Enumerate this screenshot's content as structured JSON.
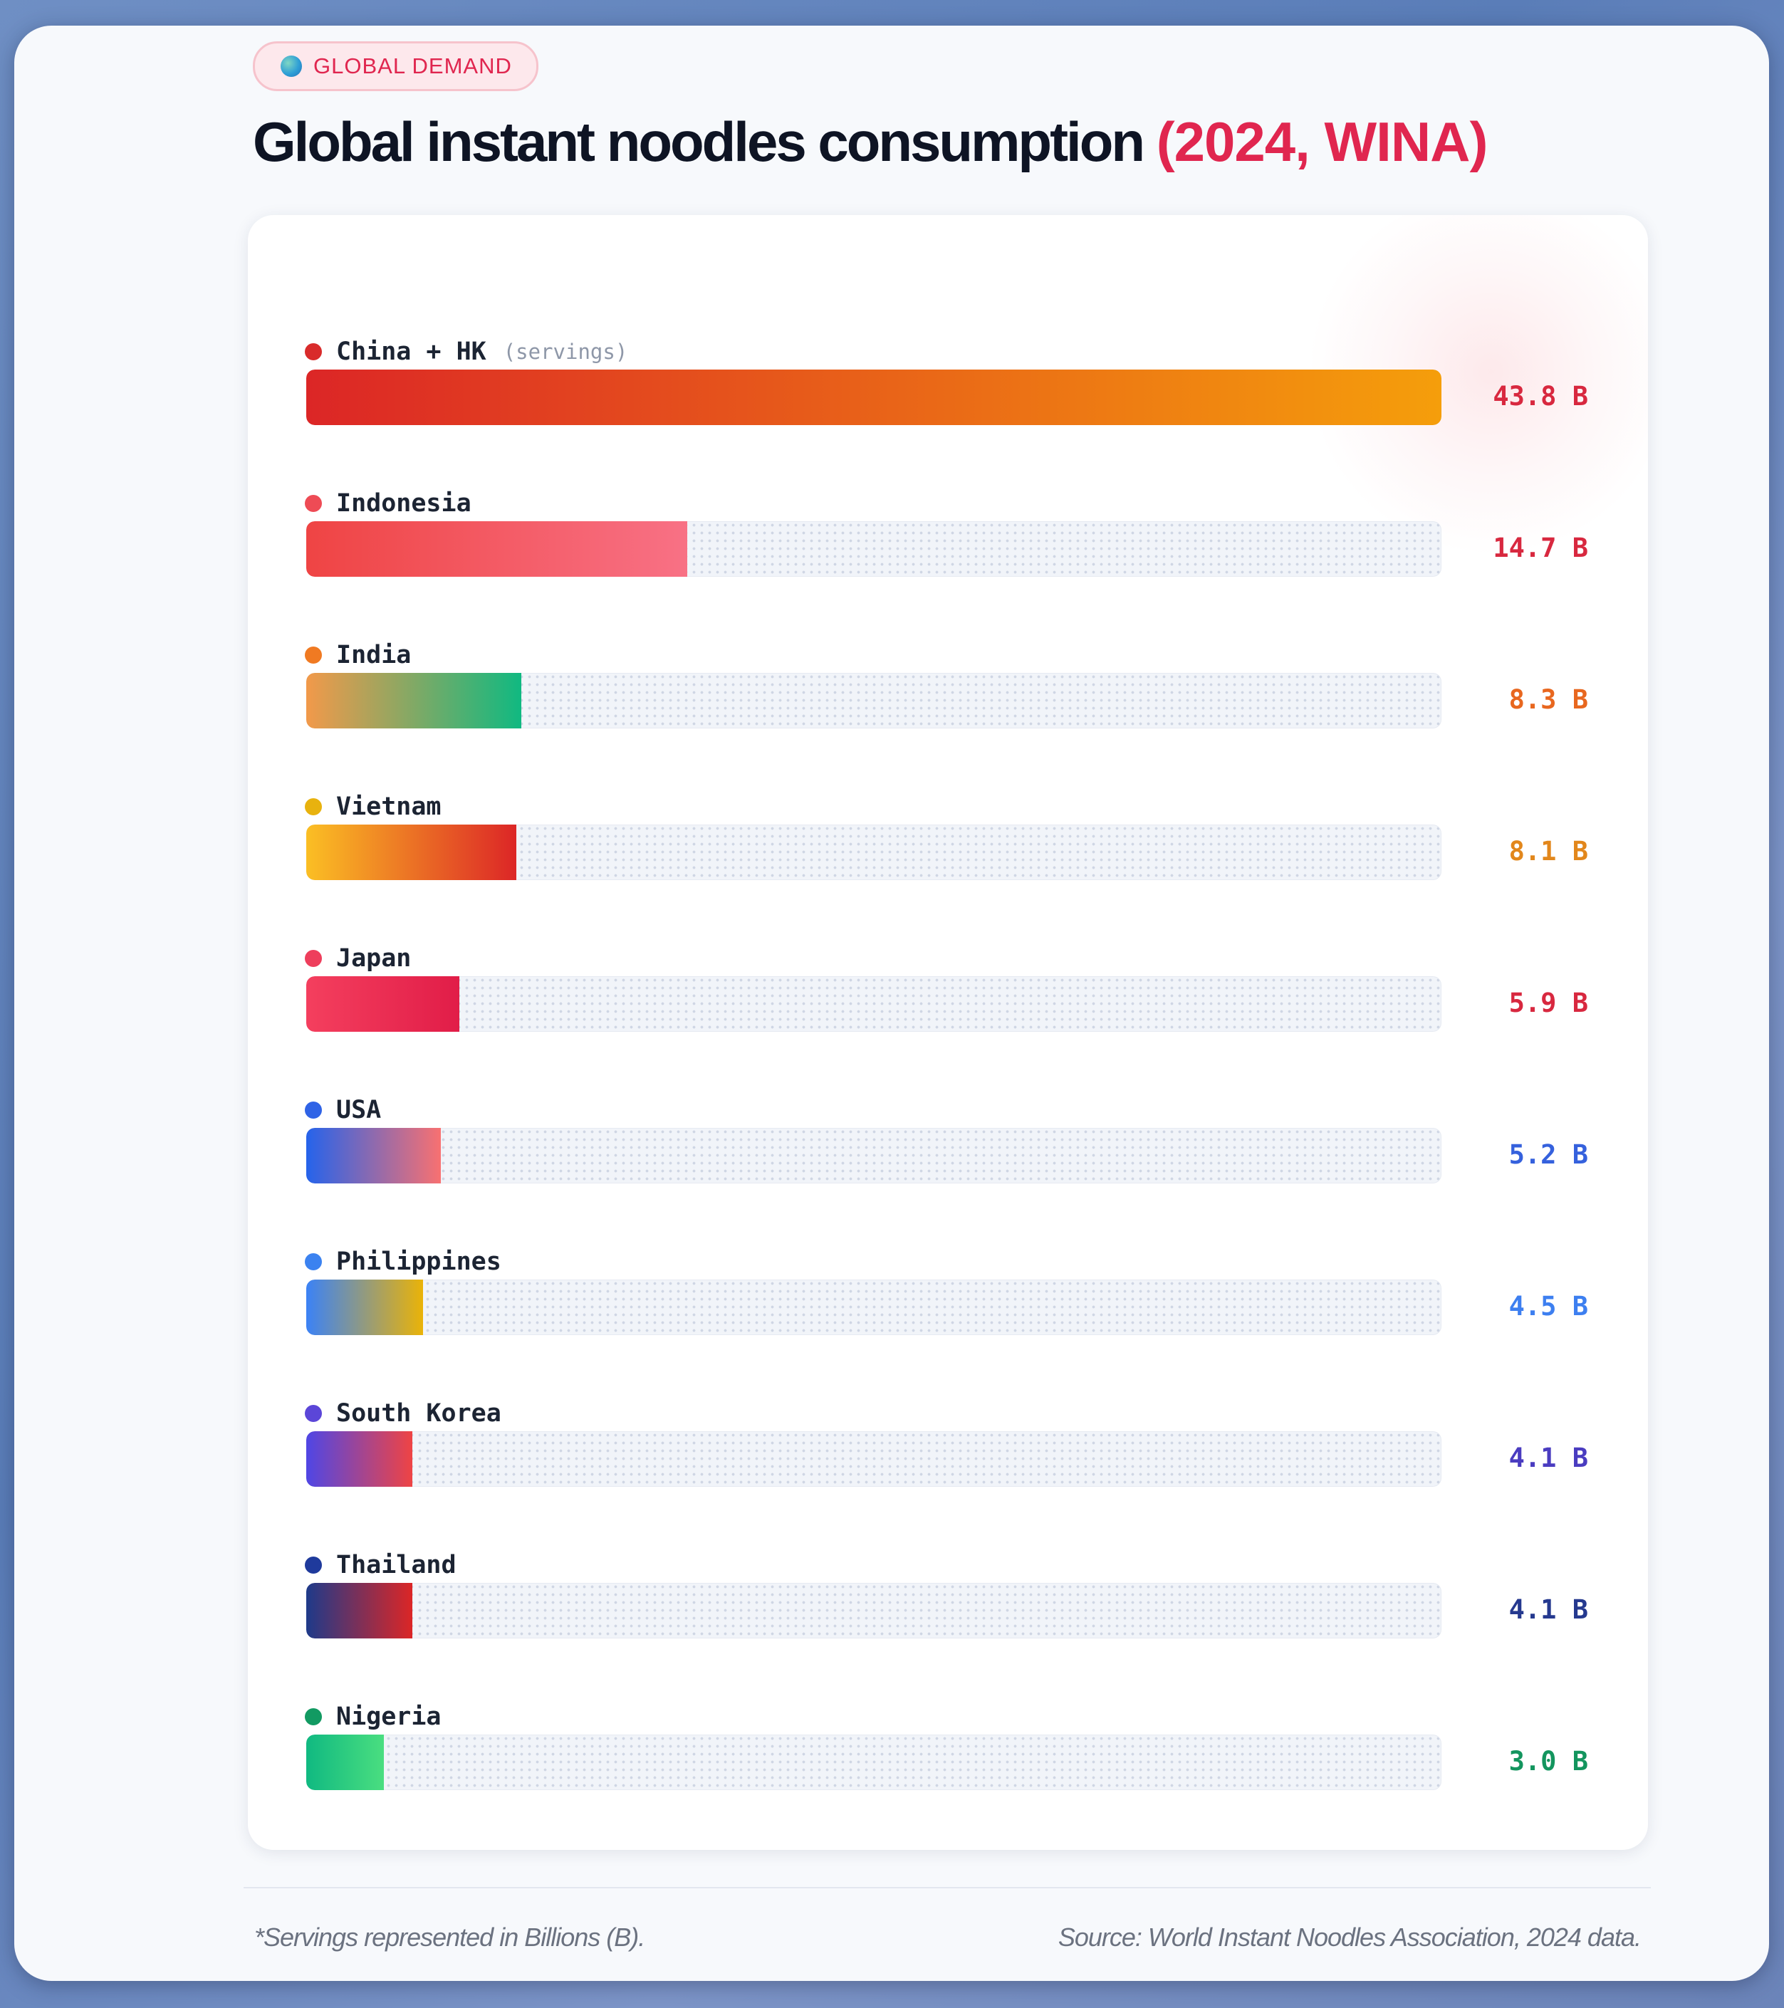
{
  "badge": {
    "label": "GLOBAL DEMAND",
    "icon": "globe-icon"
  },
  "title": {
    "main": "Global instant noodles consumption",
    "highlight": "(2024, WINA)"
  },
  "chart_data": {
    "type": "bar",
    "orientation": "horizontal",
    "xlim": [
      0,
      43.8
    ],
    "unit": "B",
    "categories": [
      "China + HK",
      "Indonesia",
      "India",
      "Vietnam",
      "Japan",
      "USA",
      "Philippines",
      "South Korea",
      "Thailand",
      "Nigeria"
    ],
    "values": [
      43.8,
      14.7,
      8.3,
      8.1,
      5.9,
      5.2,
      4.5,
      4.1,
      4.1,
      3.0
    ],
    "labels": [
      "43.8 B",
      "14.7 B",
      "8.3 B",
      "8.1 B",
      "5.9 B",
      "5.2 B",
      "4.5 B",
      "4.1 B",
      "4.1 B",
      "3.0 B"
    ],
    "first_label_note": "(servings)",
    "dot_colors": [
      "#d92b2b",
      "#ee4b55",
      "#f07a22",
      "#e8b20e",
      "#ee3e5c",
      "#2f63e6",
      "#3b82f0",
      "#5b46d8",
      "#1f3a9c",
      "#129a62"
    ],
    "value_colors": [
      "#d8283f",
      "#d8283f",
      "#e8671f",
      "#e2871c",
      "#d8283f",
      "#3561dd",
      "#3d7ff0",
      "#4a3cc0",
      "#25398f",
      "#13955e"
    ],
    "bar_gradients": [
      [
        "#dc2626",
        "#f59e0b"
      ],
      [
        "#ef4444",
        "#f87185"
      ],
      [
        "#f2994a",
        "#10b981"
      ],
      [
        "#fbbf24",
        "#dc2626"
      ],
      [
        "#f43f5e",
        "#e11d48"
      ],
      [
        "#2563eb",
        "#f87171"
      ],
      [
        "#3b82f6",
        "#eab308"
      ],
      [
        "#4f46e5",
        "#ef4444"
      ],
      [
        "#1e3a8a",
        "#dc2626"
      ],
      [
        "#10b981",
        "#4ade80"
      ]
    ]
  },
  "footer": {
    "note": "*Servings represented in Billions (B).",
    "source": "Source: World Instant Noodles Association, 2024 data."
  }
}
